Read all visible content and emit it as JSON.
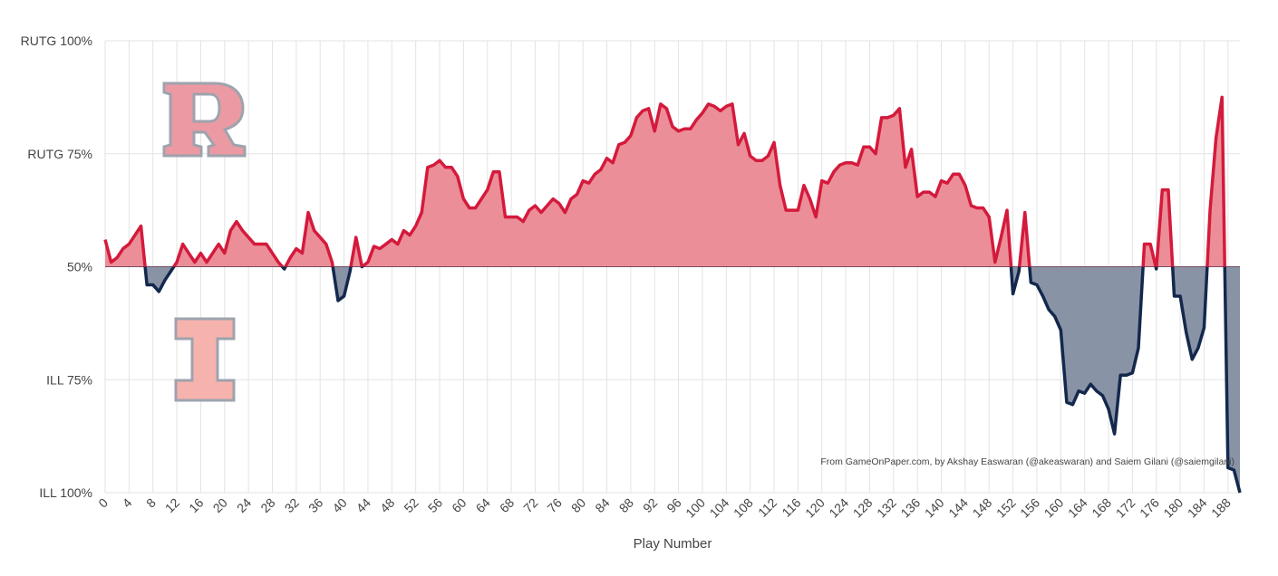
{
  "chart_data": {
    "type": "area",
    "x_label": "Play Number",
    "annotation": "From GameOnPaper.com, by Akshay Easwaran (@akeaswaran) and Saiem Gilani (@saiemgilani)",
    "x": [
      0,
      1,
      2,
      3,
      4,
      5,
      6,
      7,
      8,
      9,
      10,
      11,
      12,
      13,
      14,
      15,
      16,
      17,
      18,
      19,
      20,
      21,
      22,
      23,
      24,
      25,
      26,
      27,
      28,
      29,
      30,
      31,
      32,
      33,
      34,
      35,
      36,
      37,
      38,
      39,
      40,
      41,
      42,
      43,
      44,
      45,
      46,
      47,
      48,
      49,
      50,
      51,
      52,
      53,
      54,
      55,
      56,
      57,
      58,
      59,
      60,
      61,
      62,
      63,
      64,
      65,
      66,
      67,
      68,
      69,
      70,
      71,
      72,
      73,
      74,
      75,
      76,
      77,
      78,
      79,
      80,
      81,
      82,
      83,
      84,
      85,
      86,
      87,
      88,
      89,
      90,
      91,
      92,
      93,
      94,
      95,
      96,
      97,
      98,
      99,
      100,
      101,
      102,
      103,
      104,
      105,
      106,
      107,
      108,
      109,
      110,
      111,
      112,
      113,
      114,
      115,
      116,
      117,
      118,
      119,
      120,
      121,
      122,
      123,
      124,
      125,
      126,
      127,
      128,
      129,
      130,
      131,
      132,
      133,
      134,
      135,
      136,
      137,
      138,
      139,
      140,
      141,
      142,
      143,
      144,
      145,
      146,
      147,
      148,
      149,
      150,
      151,
      152,
      153,
      154,
      155,
      156,
      157,
      158,
      159,
      160,
      161,
      162,
      163,
      164,
      165,
      166,
      167,
      168,
      169,
      170,
      171,
      172,
      173,
      174,
      175,
      176,
      177,
      178,
      179,
      180,
      181,
      182,
      183,
      184,
      185,
      186,
      187,
      188,
      189,
      190
    ],
    "values": [
      56,
      51,
      52,
      54,
      55,
      57,
      59,
      46,
      46,
      44.5,
      47,
      49,
      51,
      55,
      53,
      51,
      53,
      51,
      53,
      55,
      53,
      58,
      60,
      58,
      56.5,
      55,
      55,
      55,
      53,
      51,
      49.5,
      52,
      54,
      53,
      62,
      58,
      56.5,
      55,
      51,
      42.5,
      43.5,
      49,
      56.5,
      50,
      51,
      54.5,
      54,
      55,
      56,
      55,
      58,
      57,
      59,
      62,
      72,
      72.5,
      73.5,
      72,
      72,
      70,
      65,
      63,
      63,
      65,
      67,
      71,
      71,
      61,
      61,
      61,
      60,
      62.5,
      63.5,
      62,
      63.5,
      65,
      64,
      62,
      65,
      66,
      69,
      68.5,
      70.5,
      71.5,
      74,
      73,
      77,
      77.5,
      79,
      83,
      84.5,
      85,
      80,
      86,
      85,
      81,
      80,
      80.5,
      80.5,
      82.5,
      84,
      86,
      85.5,
      84.5,
      85.5,
      86,
      77,
      79.5,
      74.5,
      73.5,
      73.5,
      74.5,
      77.5,
      68,
      62.5,
      62.5,
      62.5,
      68,
      65,
      61,
      69,
      68.5,
      71,
      72.5,
      73,
      73,
      72.5,
      76.5,
      76.5,
      75,
      83,
      83,
      83.5,
      85,
      72,
      76,
      65.5,
      66.5,
      66.5,
      65.5,
      69,
      68.5,
      70.5,
      70.5,
      68,
      63.5,
      63,
      63,
      61,
      51,
      56.5,
      62.5,
      44,
      49,
      62,
      46.5,
      46,
      43.5,
      40.5,
      39,
      36,
      20,
      19.5,
      22.5,
      22,
      24,
      22.5,
      21.5,
      18.5,
      13,
      26,
      26,
      26.5,
      32,
      55,
      55,
      49.5,
      67,
      67,
      43.5,
      43.5,
      35.5,
      29.5,
      32,
      36.5,
      62.5,
      78.5,
      87.5,
      5.5,
      5,
      0
    ],
    "baseline": 50,
    "color_above": "#d41a3c",
    "color_below": "#13284c",
    "fill_above": "#eb8e98",
    "fill_below": "#8993a6",
    "xlim": [
      0,
      190
    ],
    "ylim": [
      0,
      100
    ],
    "xticks": [
      0,
      4,
      8,
      12,
      16,
      20,
      24,
      28,
      32,
      36,
      40,
      44,
      48,
      52,
      56,
      60,
      64,
      68,
      72,
      76,
      80,
      84,
      88,
      92,
      96,
      100,
      104,
      108,
      112,
      116,
      120,
      124,
      128,
      132,
      136,
      140,
      144,
      148,
      152,
      156,
      160,
      164,
      168,
      172,
      176,
      180,
      184,
      188
    ],
    "yticks": [
      {
        "value": 0,
        "label": "ILL 100%"
      },
      {
        "value": 25,
        "label": "ILL 75%"
      },
      {
        "value": 50,
        "label": "50%"
      },
      {
        "value": 75,
        "label": "RUTG 75%"
      },
      {
        "value": 100,
        "label": "RUTG 100%"
      }
    ],
    "grid": true
  }
}
